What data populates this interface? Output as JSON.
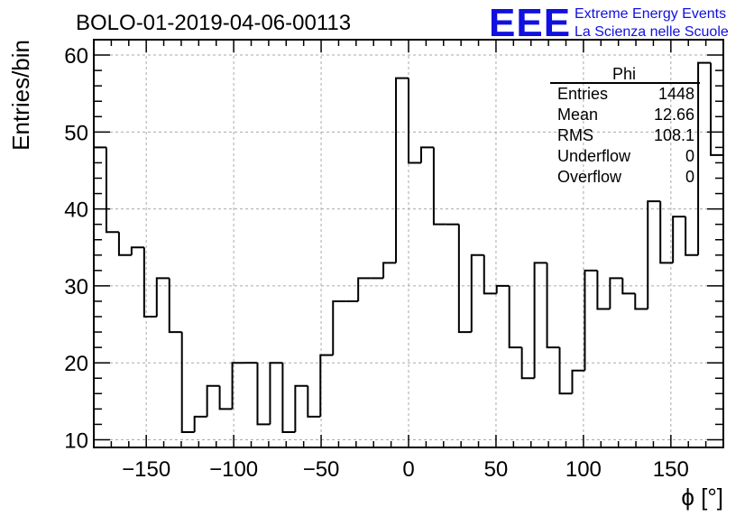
{
  "chart_data": {
    "type": "histogram",
    "title": "BOLO-01-2019-04-06-00113",
    "xlabel": "ϕ [°]",
    "ylabel": "Entries/bin",
    "xlim": [
      -180,
      180
    ],
    "ylim": [
      9,
      62
    ],
    "grid": true,
    "x_ticks": [
      -150,
      -100,
      -50,
      0,
      50,
      100,
      150
    ],
    "y_ticks": [
      10,
      20,
      30,
      40,
      50,
      60
    ],
    "bin_width": 7.2,
    "values": [
      48,
      37,
      34,
      35,
      26,
      31,
      24,
      11,
      13,
      17,
      14,
      20,
      20,
      12,
      20,
      11,
      17,
      13,
      21,
      28,
      28,
      31,
      31,
      33,
      57,
      46,
      48,
      38,
      38,
      24,
      34,
      29,
      30,
      22,
      18,
      33,
      22,
      16,
      19,
      32,
      27,
      31,
      29,
      27,
      41,
      33,
      39,
      34,
      59,
      47
    ],
    "stats_box": {
      "title": "Phi",
      "rows": [
        {
          "label": "Entries",
          "value": "1448"
        },
        {
          "label": "Mean",
          "value": "12.66"
        },
        {
          "label": "RMS",
          "value": "108.1"
        },
        {
          "label": "Underflow",
          "value": "0"
        },
        {
          "label": "Overflow",
          "value": "0"
        }
      ]
    },
    "logo": {
      "text": "EEE",
      "line1": "Extreme Energy Events",
      "line2": "La Scienza nelle Scuole",
      "color": "#1010e0"
    }
  }
}
